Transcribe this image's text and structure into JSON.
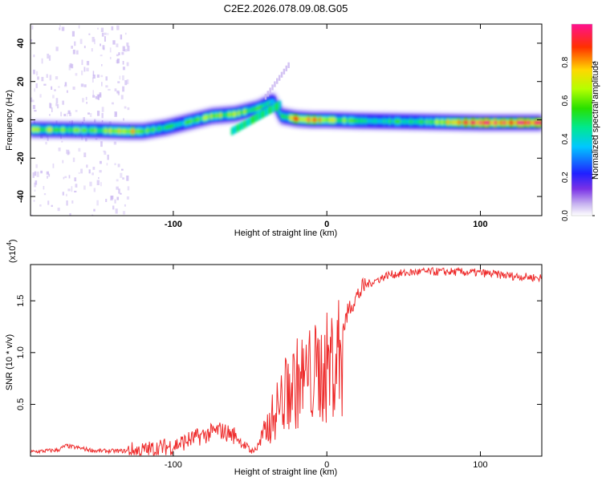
{
  "title": "C2E2.2026.078.09.08.G05",
  "chart_data": [
    {
      "type": "heatmap",
      "xlabel": "Height of straight line (km)",
      "ylabel": "Frequency (Hz)",
      "xlim": [
        -193,
        140
      ],
      "ylim": [
        -50,
        50
      ],
      "xticks": [
        -100,
        0,
        100
      ],
      "yticks": [
        -40,
        -20,
        0,
        20,
        40
      ],
      "ridge": {
        "x": [
          -193,
          -150,
          -130,
          -120,
          -105,
          -90,
          -75,
          -60,
          -45,
          -35,
          -30,
          -20,
          -10,
          0,
          20,
          60,
          100,
          140
        ],
        "freq": [
          -5,
          -5.5,
          -6,
          -6,
          -4,
          -1,
          2,
          3,
          6,
          10,
          2,
          0.5,
          0,
          0,
          -0.5,
          -1,
          -1.5,
          -1.5
        ],
        "amplitude": [
          0.6,
          0.55,
          0.75,
          0.55,
          0.45,
          0.5,
          0.6,
          0.65,
          0.55,
          0.45,
          0.5,
          0.8,
          0.85,
          0.7,
          0.45,
          0.5,
          0.9,
          0.95
        ]
      },
      "colorbar": {
        "label": "Normalized spectral amplitude",
        "ticks": [
          0.0,
          0.2,
          0.4,
          0.6,
          0.8
        ],
        "range": [
          0,
          1
        ]
      }
    },
    {
      "type": "line",
      "xlabel": "Height of straight line (km)",
      "ylabel": "SNR (10 * v/v)",
      "yunit_note": "(x10",
      "yunit_exp": "4",
      "xlim": [
        -193,
        140
      ],
      "ylim": [
        0,
        1.85
      ],
      "xticks": [
        -100,
        0,
        100
      ],
      "yticks": [
        0.5,
        1.0,
        1.5
      ],
      "series": [
        {
          "color": "#ee2b2b",
          "x": [
            -193,
            -175,
            -170,
            -150,
            -120,
            -100,
            -85,
            -70,
            -60,
            -50,
            -45,
            -38,
            -32,
            -25,
            -18,
            -12,
            -5,
            0,
            10,
            15,
            25,
            40,
            60,
            80,
            100,
            120,
            140
          ],
          "values": [
            0.04,
            0.06,
            0.1,
            0.05,
            0.05,
            0.1,
            0.18,
            0.25,
            0.2,
            0.05,
            0.1,
            0.35,
            0.55,
            0.75,
            0.85,
            0.9,
            0.95,
            1.0,
            1.2,
            1.45,
            1.65,
            1.75,
            1.78,
            1.78,
            1.77,
            1.74,
            1.72
          ]
        }
      ]
    }
  ]
}
